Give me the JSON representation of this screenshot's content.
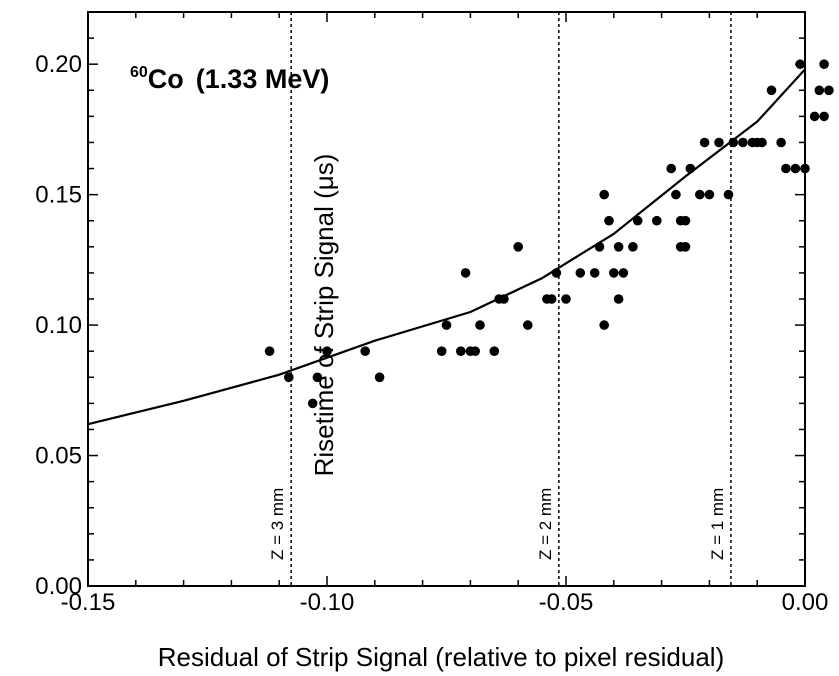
{
  "chart_data": {
    "type": "scatter",
    "title": "(1.33 MeV)",
    "title_isotope_mass": "60",
    "title_isotope_element": "Co",
    "xlabel": "Residual of Strip Signal (relative to pixel residual)",
    "ylabel": "Risetime of Strip Signal (μs)",
    "xlim": [
      -0.15,
      0.0
    ],
    "ylim": [
      0.0,
      0.22
    ],
    "x_ticks": [
      -0.15,
      -0.1,
      -0.05,
      0.0
    ],
    "x_tick_labels": [
      "-0.15",
      "-0.10",
      "-0.05",
      "0.00"
    ],
    "y_ticks": [
      0.0,
      0.05,
      0.1,
      0.15,
      0.2
    ],
    "y_tick_labels": [
      "0.00",
      "0.05",
      "0.10",
      "0.15",
      "0.20"
    ],
    "grid": false,
    "series": [
      {
        "kind": "points",
        "color": "#000000",
        "points": [
          [
            -0.112,
            0.09
          ],
          [
            -0.108,
            0.08
          ],
          [
            -0.103,
            0.07
          ],
          [
            -0.102,
            0.08
          ],
          [
            -0.1,
            0.09
          ],
          [
            -0.092,
            0.09
          ],
          [
            -0.089,
            0.08
          ],
          [
            -0.076,
            0.09
          ],
          [
            -0.075,
            0.1
          ],
          [
            -0.072,
            0.09
          ],
          [
            -0.071,
            0.12
          ],
          [
            -0.07,
            0.09
          ],
          [
            -0.069,
            0.09
          ],
          [
            -0.068,
            0.1
          ],
          [
            -0.065,
            0.09
          ],
          [
            -0.064,
            0.11
          ],
          [
            -0.063,
            0.11
          ],
          [
            -0.06,
            0.13
          ],
          [
            -0.058,
            0.1
          ],
          [
            -0.054,
            0.11
          ],
          [
            -0.053,
            0.11
          ],
          [
            -0.052,
            0.12
          ],
          [
            -0.05,
            0.11
          ],
          [
            -0.047,
            0.12
          ],
          [
            -0.044,
            0.12
          ],
          [
            -0.043,
            0.13
          ],
          [
            -0.042,
            0.15
          ],
          [
            -0.042,
            0.1
          ],
          [
            -0.041,
            0.14
          ],
          [
            -0.04,
            0.12
          ],
          [
            -0.039,
            0.11
          ],
          [
            -0.039,
            0.13
          ],
          [
            -0.038,
            0.12
          ],
          [
            -0.036,
            0.13
          ],
          [
            -0.035,
            0.14
          ],
          [
            -0.031,
            0.14
          ],
          [
            -0.028,
            0.16
          ],
          [
            -0.027,
            0.15
          ],
          [
            -0.026,
            0.14
          ],
          [
            -0.026,
            0.13
          ],
          [
            -0.025,
            0.14
          ],
          [
            -0.025,
            0.13
          ],
          [
            -0.024,
            0.16
          ],
          [
            -0.022,
            0.15
          ],
          [
            -0.021,
            0.17
          ],
          [
            -0.02,
            0.15
          ],
          [
            -0.018,
            0.17
          ],
          [
            -0.016,
            0.15
          ],
          [
            -0.015,
            0.17
          ],
          [
            -0.013,
            0.17
          ],
          [
            -0.011,
            0.17
          ],
          [
            -0.01,
            0.17
          ],
          [
            -0.009,
            0.17
          ],
          [
            -0.007,
            0.19
          ],
          [
            -0.005,
            0.17
          ],
          [
            -0.004,
            0.16
          ],
          [
            -0.002,
            0.16
          ],
          [
            -0.001,
            0.2
          ],
          [
            0.0,
            0.16
          ],
          [
            0.002,
            0.18
          ],
          [
            0.003,
            0.19
          ],
          [
            0.004,
            0.2
          ],
          [
            0.004,
            0.18
          ],
          [
            0.005,
            0.19
          ]
        ]
      },
      {
        "kind": "line",
        "color": "#000000",
        "points": [
          [
            -0.15,
            0.062
          ],
          [
            -0.13,
            0.071
          ],
          [
            -0.11,
            0.081
          ],
          [
            -0.09,
            0.094
          ],
          [
            -0.07,
            0.105
          ],
          [
            -0.055,
            0.118
          ],
          [
            -0.04,
            0.135
          ],
          [
            -0.025,
            0.157
          ],
          [
            -0.01,
            0.178
          ],
          [
            0.0,
            0.198
          ]
        ]
      }
    ],
    "vlines": [
      {
        "x": -0.1075,
        "label": "Z = 3 mm"
      },
      {
        "x": -0.0515,
        "label": "Z = 2 mm"
      },
      {
        "x": -0.0155,
        "label": "Z = 1 mm"
      }
    ]
  }
}
